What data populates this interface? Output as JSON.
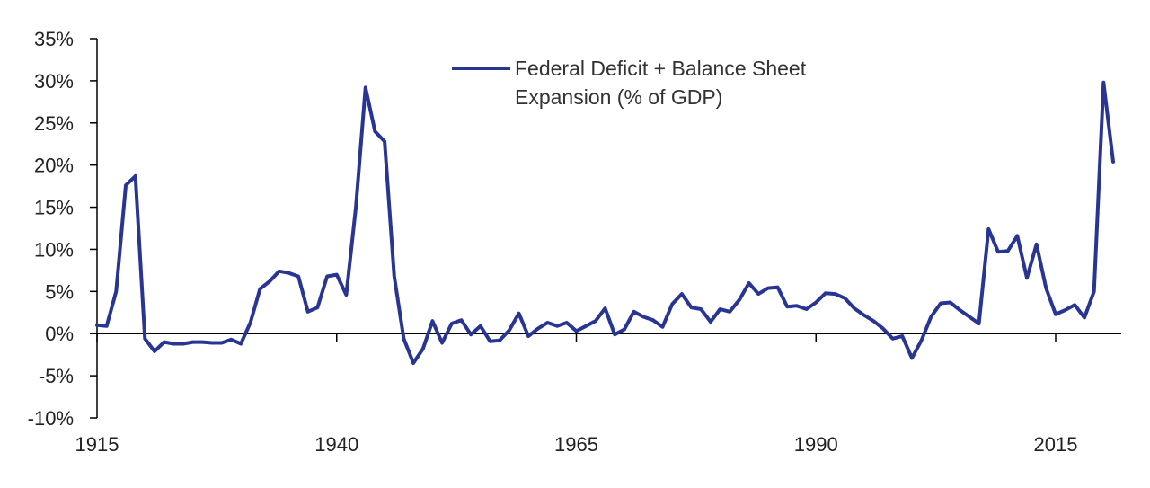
{
  "chart_data": {
    "type": "line",
    "title": "",
    "xlabel": "",
    "ylabel": "",
    "xlim": [
      1915,
      2021
    ],
    "ylim": [
      -10,
      35
    ],
    "grid": false,
    "legend_position": "top-center",
    "x_ticks": [
      1915,
      1940,
      1965,
      1990,
      2015
    ],
    "x_tick_labels": [
      "1915",
      "1940",
      "1965",
      "1990",
      "2015"
    ],
    "y_ticks": [
      -10,
      -5,
      0,
      5,
      10,
      15,
      20,
      25,
      30,
      35
    ],
    "y_tick_labels": [
      "-10%",
      "-5%",
      "0%",
      "5%",
      "10%",
      "15%",
      "20%",
      "25%",
      "30%",
      "35%"
    ],
    "legend_lines": [
      "Federal Deficit + Balance Sheet",
      "Expansion (% of GDP)"
    ],
    "series": [
      {
        "name": "Federal Deficit + Balance Sheet Expansion (% of GDP)",
        "color": "#283593",
        "x": [
          1915,
          1916,
          1917,
          1918,
          1919,
          1920,
          1921,
          1922,
          1923,
          1924,
          1925,
          1926,
          1927,
          1928,
          1929,
          1930,
          1931,
          1932,
          1933,
          1934,
          1935,
          1936,
          1937,
          1938,
          1939,
          1940,
          1941,
          1942,
          1943,
          1944,
          1945,
          1946,
          1947,
          1948,
          1949,
          1950,
          1951,
          1952,
          1953,
          1954,
          1955,
          1956,
          1957,
          1958,
          1959,
          1960,
          1961,
          1962,
          1963,
          1964,
          1965,
          1966,
          1967,
          1968,
          1969,
          1970,
          1971,
          1972,
          1973,
          1974,
          1975,
          1976,
          1977,
          1978,
          1979,
          1980,
          1981,
          1982,
          1983,
          1984,
          1985,
          1986,
          1987,
          1988,
          1989,
          1990,
          1991,
          1992,
          1993,
          1994,
          1995,
          1996,
          1997,
          1998,
          1999,
          2000,
          2001,
          2002,
          2003,
          2004,
          2005,
          2006,
          2007,
          2008,
          2009,
          2010,
          2011,
          2012,
          2013,
          2014,
          2015,
          2016,
          2017,
          2018,
          2019,
          2020,
          2021
        ],
        "values": [
          1.0,
          0.9,
          5.0,
          17.6,
          18.7,
          -0.6,
          -2.1,
          -1.0,
          -1.2,
          -1.2,
          -1.0,
          -1.0,
          -1.1,
          -1.1,
          -0.7,
          -1.2,
          1.3,
          5.3,
          6.2,
          7.4,
          7.2,
          6.8,
          2.6,
          3.1,
          6.8,
          7.0,
          4.6,
          15.0,
          29.2,
          24.0,
          22.8,
          6.8,
          -0.6,
          -3.5,
          -1.8,
          1.5,
          -1.1,
          1.2,
          1.6,
          -0.1,
          0.9,
          -0.9,
          -0.8,
          0.4,
          2.4,
          -0.3,
          0.6,
          1.3,
          0.9,
          1.3,
          0.3,
          0.9,
          1.5,
          3.0,
          -0.1,
          0.5,
          2.6,
          2.0,
          1.6,
          0.8,
          3.5,
          4.7,
          3.1,
          2.9,
          1.4,
          2.9,
          2.6,
          4.0,
          6.0,
          4.7,
          5.4,
          5.5,
          3.2,
          3.3,
          2.9,
          3.7,
          4.8,
          4.7,
          4.2,
          3.0,
          2.2,
          1.5,
          0.6,
          -0.6,
          -0.3,
          -2.9,
          -0.8,
          2.0,
          3.6,
          3.7,
          2.8,
          2.0,
          1.2,
          12.4,
          9.7,
          9.8,
          11.6,
          6.6,
          10.6,
          5.4,
          2.3,
          2.8,
          3.4,
          1.9,
          5.0,
          29.8,
          20.4
        ]
      }
    ]
  }
}
